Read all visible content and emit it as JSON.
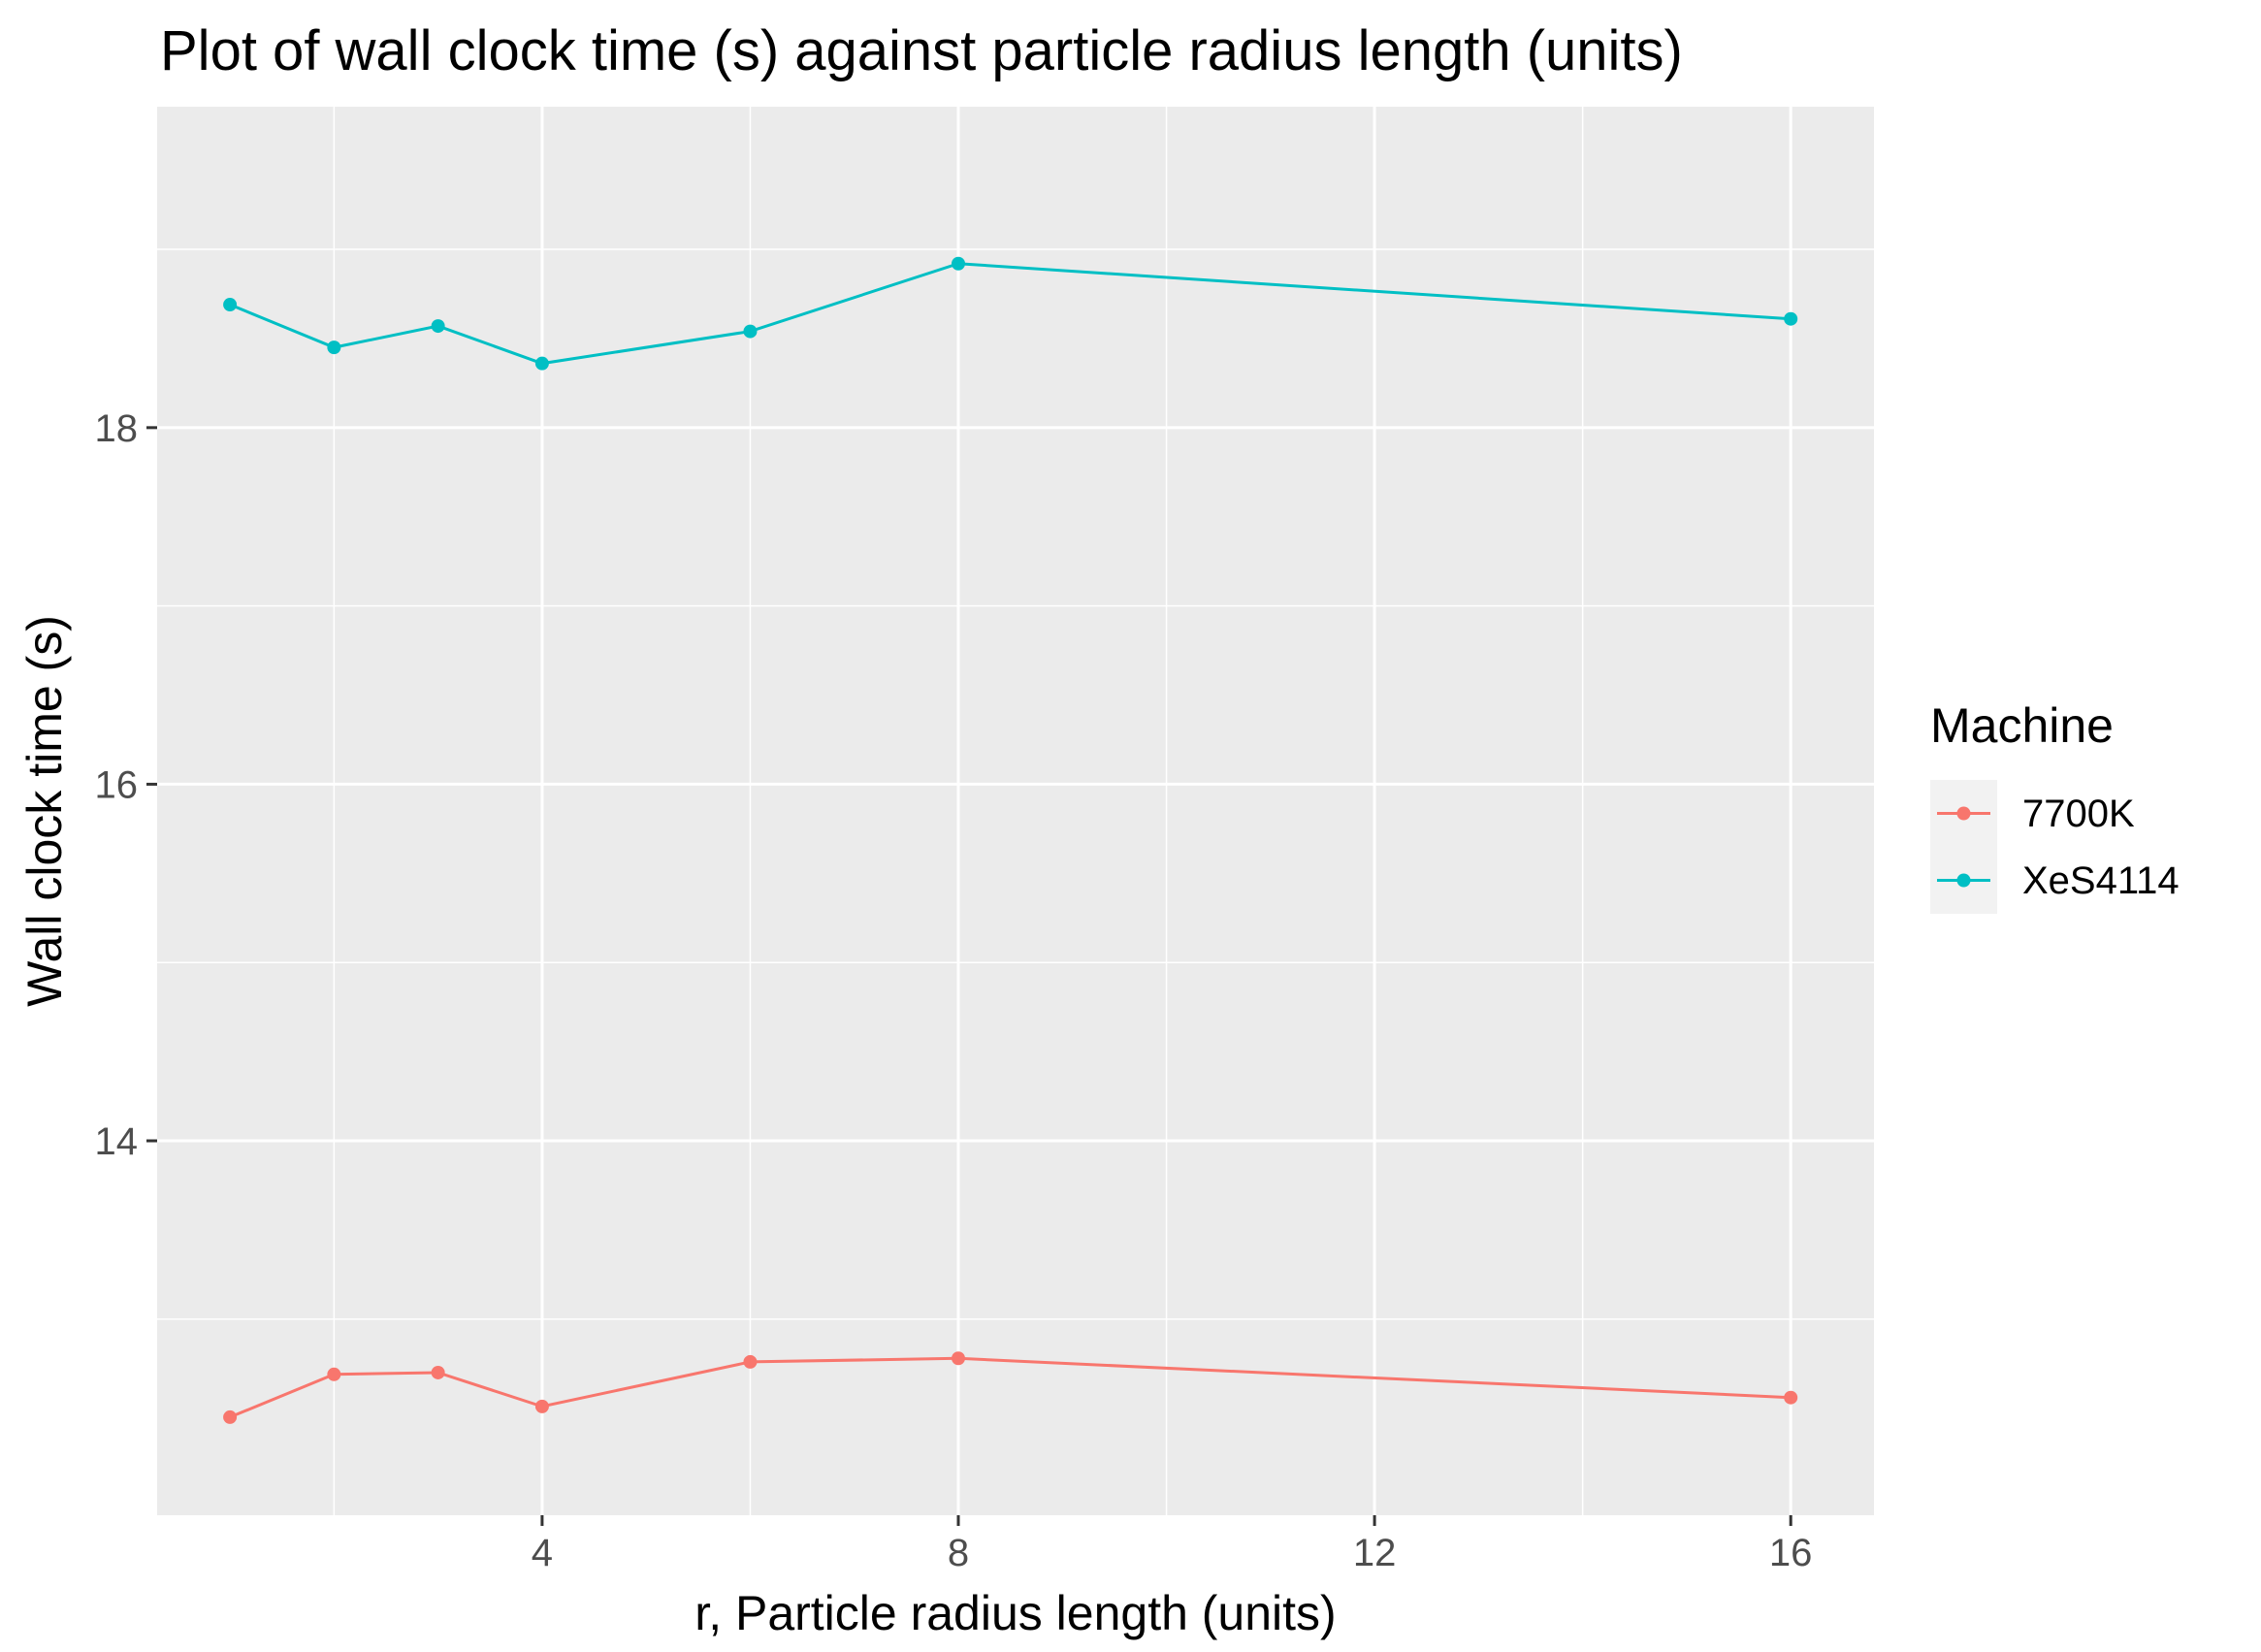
{
  "chart_data": {
    "type": "line",
    "title": "Plot of wall clock time (s) against particle radius length (units)",
    "xlabel": "r, Particle radius length (units)",
    "ylabel": "Wall clock time (s)",
    "xlim": [
      0.3,
      16.8
    ],
    "ylim": [
      11.9,
      19.8
    ],
    "x_ticks": [
      4,
      8,
      12,
      16
    ],
    "x_minor_ticks": [
      2,
      6,
      10,
      14
    ],
    "y_ticks": [
      14,
      16,
      18
    ],
    "y_minor_ticks": [
      13,
      15,
      17,
      19
    ],
    "grid": true,
    "legend": {
      "title": "Machine",
      "position": "right"
    },
    "x": [
      1,
      2,
      3,
      4,
      6,
      8,
      16
    ],
    "series": [
      {
        "name": "7700K",
        "color": "#F8766D",
        "values": [
          12.45,
          12.69,
          12.7,
          12.51,
          12.76,
          12.78,
          12.56
        ]
      },
      {
        "name": "XeS4114",
        "color": "#00BFC4",
        "values": [
          18.69,
          18.45,
          18.57,
          18.36,
          18.54,
          18.92,
          18.61
        ]
      }
    ]
  }
}
